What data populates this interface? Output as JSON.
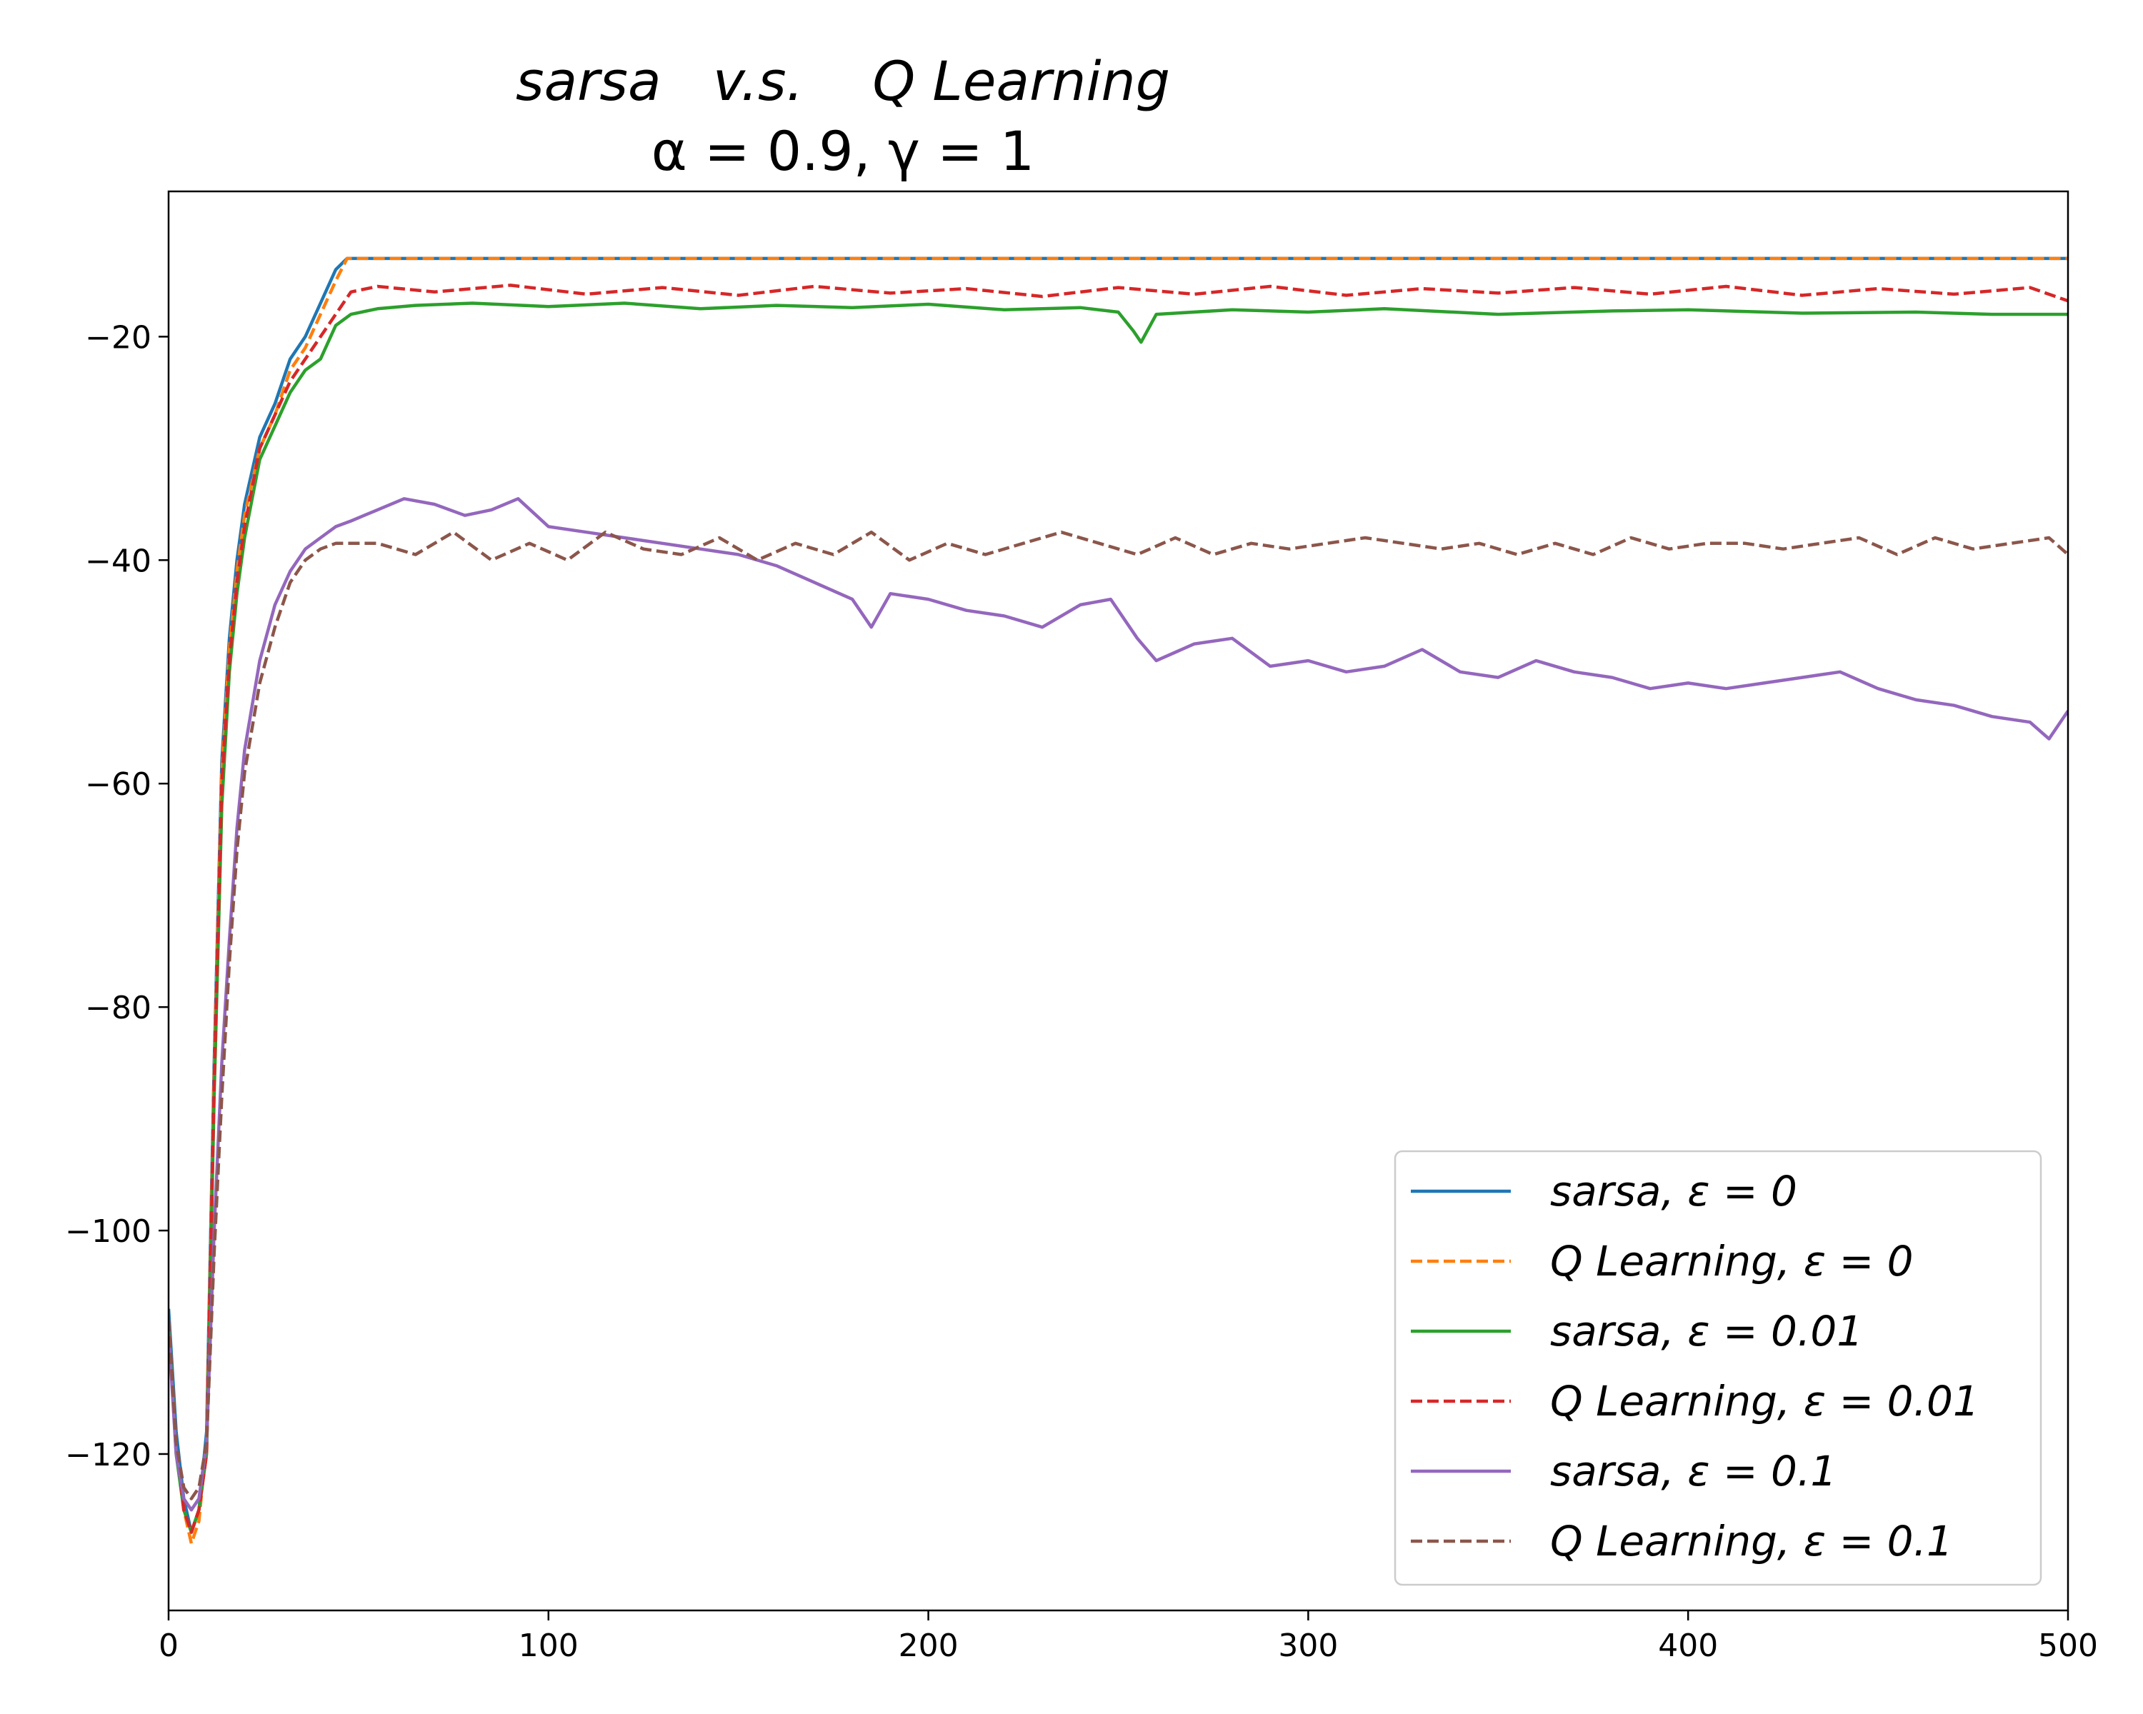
{
  "chart_data": {
    "type": "line",
    "title_line1": "sarsa   v.s.    Q Learning",
    "title_line2": "α = 0.9, γ = 1",
    "xlabel": "",
    "ylabel": "",
    "xlim": [
      0,
      500
    ],
    "ylim": [
      -134,
      -7
    ],
    "xticks": [
      0,
      100,
      200,
      300,
      400,
      500
    ],
    "xtick_labels": [
      "0",
      "100",
      "200",
      "300",
      "400",
      "500"
    ],
    "yticks": [
      -120,
      -100,
      -80,
      -60,
      -40,
      -20
    ],
    "ytick_labels": [
      "−120",
      "−100",
      "−80",
      "−60",
      "−40",
      "−20"
    ],
    "grid": false,
    "legend_position": "lower-right",
    "series": [
      {
        "name": "sarsa, ε = 0",
        "color": "#1f77b4",
        "dash": "solid",
        "x": [
          0,
          2,
          4,
          6,
          8,
          10,
          12,
          14,
          16,
          18,
          20,
          24,
          28,
          32,
          36,
          40,
          44,
          47,
          500
        ],
        "y": [
          -107,
          -118,
          -124,
          -127,
          -125,
          -118,
          -85,
          -58,
          -47,
          -40,
          -35,
          -29,
          -26,
          -22,
          -20,
          -17,
          -14,
          -13,
          -13
        ]
      },
      {
        "name": "Q Learning, ε = 0",
        "color": "#ff7f0e",
        "dash": "dashed",
        "x": [
          0,
          2,
          4,
          6,
          8,
          10,
          12,
          14,
          16,
          18,
          20,
          24,
          28,
          32,
          36,
          40,
          44,
          47,
          500
        ],
        "y": [
          -108,
          -119,
          -125,
          -128,
          -126,
          -119,
          -86,
          -59,
          -48,
          -41,
          -36,
          -30,
          -27,
          -23,
          -21,
          -18,
          -15,
          -13,
          -13
        ]
      },
      {
        "name": "sarsa, ε = 0.01",
        "color": "#2ca02c",
        "dash": "solid",
        "x": [
          0,
          2,
          4,
          6,
          8,
          10,
          12,
          14,
          16,
          18,
          20,
          24,
          28,
          32,
          36,
          40,
          44,
          48,
          55,
          65,
          80,
          100,
          120,
          140,
          160,
          180,
          200,
          220,
          240,
          250,
          254,
          256,
          260,
          280,
          300,
          320,
          350,
          380,
          400,
          430,
          460,
          480,
          500
        ],
        "y": [
          -108,
          -120,
          -125,
          -127,
          -125,
          -120,
          -88,
          -62,
          -50,
          -43,
          -38,
          -31,
          -28,
          -25,
          -23,
          -22,
          -19,
          -18,
          -17.5,
          -17.2,
          -17,
          -17.3,
          -17,
          -17.5,
          -17.2,
          -17.4,
          -17.1,
          -17.6,
          -17.4,
          -17.8,
          -19.5,
          -20.5,
          -18,
          -17.6,
          -17.8,
          -17.5,
          -18,
          -17.7,
          -17.6,
          -17.9,
          -17.8,
          -18,
          -18
        ]
      },
      {
        "name": "Q Learning, ε = 0.01",
        "color": "#d62728",
        "dash": "dashed",
        "x": [
          0,
          2,
          4,
          6,
          8,
          10,
          12,
          14,
          16,
          18,
          20,
          24,
          28,
          32,
          36,
          40,
          44,
          48,
          55,
          70,
          90,
          110,
          130,
          150,
          170,
          190,
          210,
          230,
          250,
          270,
          290,
          310,
          330,
          350,
          370,
          390,
          410,
          430,
          450,
          470,
          490,
          500
        ],
        "y": [
          -108,
          -119,
          -125,
          -127,
          -125,
          -120,
          -87,
          -60,
          -49,
          -42,
          -37,
          -30,
          -27,
          -24,
          -22,
          -20,
          -18,
          -16,
          -15.5,
          -16,
          -15.4,
          -16.2,
          -15.6,
          -16.3,
          -15.5,
          -16.1,
          -15.7,
          -16.4,
          -15.6,
          -16.2,
          -15.5,
          -16.3,
          -15.7,
          -16.1,
          -15.6,
          -16.2,
          -15.5,
          -16.3,
          -15.7,
          -16.2,
          -15.6,
          -16.8
        ]
      },
      {
        "name": "sarsa, ε = 0.1",
        "color": "#9467bd",
        "dash": "solid",
        "x": [
          0,
          2,
          4,
          6,
          8,
          10,
          12,
          14,
          16,
          18,
          20,
          24,
          28,
          32,
          36,
          40,
          44,
          48,
          55,
          62,
          70,
          78,
          85,
          92,
          100,
          110,
          120,
          130,
          140,
          150,
          160,
          170,
          180,
          185,
          190,
          200,
          210,
          220,
          230,
          240,
          248,
          255,
          260,
          270,
          280,
          290,
          300,
          310,
          320,
          330,
          340,
          350,
          360,
          370,
          380,
          390,
          400,
          410,
          420,
          430,
          440,
          450,
          460,
          470,
          480,
          490,
          495,
          500
        ],
        "y": [
          -109,
          -120,
          -124,
          -125,
          -124,
          -119,
          -100,
          -85,
          -74,
          -64,
          -57,
          -49,
          -44,
          -41,
          -39,
          -38,
          -37,
          -36.5,
          -35.5,
          -34.5,
          -35,
          -36,
          -35.5,
          -34.5,
          -37,
          -37.5,
          -38,
          -38.5,
          -39,
          -39.5,
          -40.5,
          -42,
          -43.5,
          -46,
          -43,
          -43.5,
          -44.5,
          -45,
          -46,
          -44,
          -43.5,
          -47,
          -49,
          -47.5,
          -47,
          -49.5,
          -49,
          -50,
          -49.5,
          -48,
          -50,
          -50.5,
          -49,
          -50,
          -50.5,
          -51.5,
          -51,
          -51.5,
          -51,
          -50.5,
          -50,
          -51.5,
          -52.5,
          -53,
          -54,
          -54.5,
          -56,
          -53.5
        ]
      },
      {
        "name": "Q Learning, ε = 0.1",
        "color": "#8c564b",
        "dash": "dashed",
        "x": [
          0,
          2,
          4,
          6,
          8,
          10,
          12,
          14,
          16,
          18,
          20,
          24,
          28,
          32,
          36,
          40,
          44,
          48,
          55,
          65,
          75,
          85,
          95,
          105,
          115,
          125,
          135,
          145,
          155,
          165,
          175,
          185,
          195,
          205,
          215,
          225,
          235,
          245,
          255,
          265,
          275,
          285,
          295,
          305,
          315,
          325,
          335,
          345,
          355,
          365,
          375,
          385,
          395,
          405,
          415,
          425,
          435,
          445,
          455,
          465,
          475,
          485,
          495,
          500
        ],
        "y": [
          -108,
          -119,
          -123,
          -124,
          -123,
          -119,
          -102,
          -88,
          -76,
          -66,
          -59,
          -51,
          -46,
          -42,
          -40,
          -39,
          -38.5,
          -38.5,
          -38.5,
          -39.5,
          -37.5,
          -40,
          -38.5,
          -40,
          -37.5,
          -39,
          -39.5,
          -38,
          -40,
          -38.5,
          -39.5,
          -37.5,
          -40,
          -38.5,
          -39.5,
          -38.5,
          -37.5,
          -38.5,
          -39.5,
          -38,
          -39.5,
          -38.5,
          -39,
          -38.5,
          -38,
          -38.5,
          -39,
          -38.5,
          -39.5,
          -38.5,
          -39.5,
          -38,
          -39,
          -38.5,
          -38.5,
          -39,
          -38.5,
          -38,
          -39.5,
          -38,
          -39,
          -38.5,
          -38,
          -39.5
        ]
      }
    ]
  }
}
